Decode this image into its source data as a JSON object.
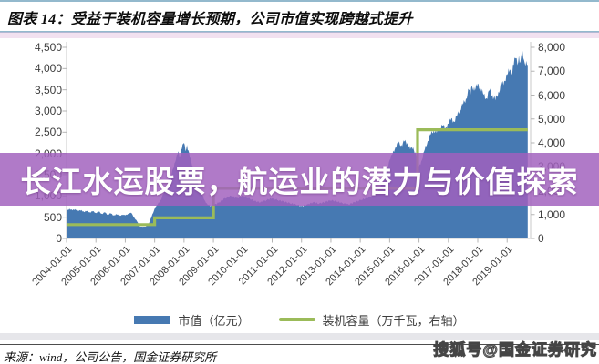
{
  "header": {
    "title": "图表 14：受益于装机容量增长预期，公司市值实现跨越式提升"
  },
  "watermark": {
    "band_text": "长江水运股票，航运业的潜力与价值探索",
    "band_color": "#A160BE",
    "corner_text": "搜狐号@国金证券研究"
  },
  "footer": {
    "source": "来源：wind，公司公告，国金证券研究所"
  },
  "legend": [
    {
      "label": "市值（亿元）",
      "color": "#4679B2",
      "swatch": "bar"
    },
    {
      "label": "装机容量（万千瓦，右轴）",
      "color": "#9BBB59",
      "swatch": "line"
    }
  ],
  "chart_data": {
    "type": "combo",
    "title": "受益于装机容量增长预期，公司市值实现跨越式提升",
    "grid": false,
    "legend_position": "bottom",
    "x_axis": {
      "labels": [
        "2004-01-01",
        "2005-01-01",
        "2006-01-01",
        "2007-01-01",
        "2008-01-01",
        "2009-01-01",
        "2010-01-01",
        "2011-01-01",
        "2012-01-01",
        "2013-01-01",
        "2014-01-01",
        "2015-01-01",
        "2016-01-01",
        "2017-01-01",
        "2018-01-01",
        "2019-01-01"
      ],
      "start_year": 2004,
      "end_year_frac": 2019.8
    },
    "left_axis": {
      "title": "市值（亿元）",
      "min": 0,
      "max": 4500,
      "step": 500,
      "tick_labels": [
        "0",
        "500",
        "1,000",
        "1,500",
        "2,000",
        "2,500",
        "3,000",
        "3,500",
        "4,000",
        "4,500"
      ]
    },
    "right_axis": {
      "title": "装机容量（万千瓦）",
      "min": 0,
      "max": 8000,
      "step": 1000,
      "tick_labels": [
        "0",
        "1,000",
        "2,000",
        "3,000",
        "4,000",
        "5,000",
        "6,000",
        "7,000",
        "8,000"
      ]
    },
    "series": [
      {
        "name": "市值（亿元）",
        "type": "area",
        "axis": "left",
        "color": "#4679B2",
        "points": [
          [
            2004.0,
            650
          ],
          [
            2004.1,
            700
          ],
          [
            2004.2,
            660
          ],
          [
            2004.3,
            690
          ],
          [
            2004.4,
            640
          ],
          [
            2004.5,
            670
          ],
          [
            2004.6,
            620
          ],
          [
            2004.7,
            650
          ],
          [
            2004.8,
            610
          ],
          [
            2004.9,
            640
          ],
          [
            2005.0,
            600
          ],
          [
            2005.1,
            630
          ],
          [
            2005.2,
            580
          ],
          [
            2005.3,
            610
          ],
          [
            2005.4,
            560
          ],
          [
            2005.5,
            590
          ],
          [
            2005.6,
            540
          ],
          [
            2005.7,
            570
          ],
          [
            2005.8,
            530
          ],
          [
            2005.9,
            560
          ],
          [
            2006.0,
            540
          ],
          [
            2006.1,
            580
          ],
          [
            2006.2,
            600
          ],
          [
            2006.3,
            500
          ],
          [
            2006.4,
            400
          ],
          [
            2006.5,
            280
          ],
          [
            2006.6,
            250
          ],
          [
            2006.7,
            280
          ],
          [
            2006.8,
            350
          ],
          [
            2006.9,
            520
          ],
          [
            2007.0,
            700
          ],
          [
            2007.1,
            800
          ],
          [
            2007.2,
            900
          ],
          [
            2007.3,
            1050
          ],
          [
            2007.4,
            1200
          ],
          [
            2007.5,
            1450
          ],
          [
            2007.55,
            1350
          ],
          [
            2007.6,
            1600
          ],
          [
            2007.7,
            1800
          ],
          [
            2007.8,
            2050
          ],
          [
            2007.85,
            1900
          ],
          [
            2007.9,
            2100
          ],
          [
            2008.0,
            2250
          ],
          [
            2008.05,
            2050
          ],
          [
            2008.1,
            2200
          ],
          [
            2008.2,
            1900
          ],
          [
            2008.3,
            1700
          ],
          [
            2008.4,
            1500
          ],
          [
            2008.5,
            1250
          ],
          [
            2008.6,
            1050
          ],
          [
            2008.7,
            900
          ],
          [
            2008.8,
            800
          ],
          [
            2008.9,
            760
          ],
          [
            2009.0,
            780
          ],
          [
            2009.2,
            850
          ],
          [
            2009.4,
            950
          ],
          [
            2009.6,
            1000
          ],
          [
            2009.8,
            950
          ],
          [
            2010.0,
            1000
          ],
          [
            2010.2,
            950
          ],
          [
            2010.4,
            880
          ],
          [
            2010.6,
            850
          ],
          [
            2010.8,
            900
          ],
          [
            2011.0,
            950
          ],
          [
            2011.2,
            900
          ],
          [
            2011.4,
            870
          ],
          [
            2011.6,
            830
          ],
          [
            2011.8,
            800
          ],
          [
            2012.0,
            760
          ],
          [
            2012.2,
            800
          ],
          [
            2012.4,
            850
          ],
          [
            2012.6,
            820
          ],
          [
            2012.8,
            860
          ],
          [
            2013.0,
            900
          ],
          [
            2013.2,
            870
          ],
          [
            2013.4,
            830
          ],
          [
            2013.6,
            800
          ],
          [
            2013.8,
            850
          ],
          [
            2014.0,
            900
          ],
          [
            2014.2,
            950
          ],
          [
            2014.4,
            1000
          ],
          [
            2014.6,
            1100
          ],
          [
            2014.8,
            1400
          ],
          [
            2014.9,
            1600
          ],
          [
            2015.0,
            1850
          ],
          [
            2015.1,
            2000
          ],
          [
            2015.2,
            2150
          ],
          [
            2015.3,
            2250
          ],
          [
            2015.4,
            2200
          ],
          [
            2015.5,
            2280
          ],
          [
            2015.6,
            2250
          ],
          [
            2015.7,
            2100
          ],
          [
            2015.8,
            2150
          ],
          [
            2015.9,
            1950
          ],
          [
            2016.0,
            1700
          ],
          [
            2016.1,
            1850
          ],
          [
            2016.2,
            2100
          ],
          [
            2016.3,
            2300
          ],
          [
            2016.4,
            2450
          ],
          [
            2016.5,
            2550
          ],
          [
            2016.6,
            2480
          ],
          [
            2016.7,
            2580
          ],
          [
            2016.8,
            2650
          ],
          [
            2016.9,
            2600
          ],
          [
            2017.0,
            2700
          ],
          [
            2017.1,
            2820
          ],
          [
            2017.2,
            2750
          ],
          [
            2017.3,
            2900
          ],
          [
            2017.4,
            3050
          ],
          [
            2017.5,
            3150
          ],
          [
            2017.6,
            3300
          ],
          [
            2017.7,
            3500
          ],
          [
            2017.75,
            3380
          ],
          [
            2017.8,
            3600
          ],
          [
            2017.9,
            3480
          ],
          [
            2018.0,
            3650
          ],
          [
            2018.1,
            3520
          ],
          [
            2018.2,
            3380
          ],
          [
            2018.3,
            3300
          ],
          [
            2018.4,
            3480
          ],
          [
            2018.5,
            3380
          ],
          [
            2018.6,
            3250
          ],
          [
            2018.7,
            3450
          ],
          [
            2018.8,
            3600
          ],
          [
            2018.9,
            3700
          ],
          [
            2019.0,
            3850
          ],
          [
            2019.1,
            3980
          ],
          [
            2019.15,
            3850
          ],
          [
            2019.2,
            4100
          ],
          [
            2019.3,
            4250
          ],
          [
            2019.35,
            4080
          ],
          [
            2019.4,
            4300
          ],
          [
            2019.45,
            4150
          ],
          [
            2019.5,
            4380
          ],
          [
            2019.55,
            4250
          ],
          [
            2019.6,
            4120
          ],
          [
            2019.65,
            4180
          ],
          [
            2019.7,
            4080
          ]
        ]
      },
      {
        "name": "装机容量（万千瓦，右轴）",
        "type": "step_line",
        "axis": "right",
        "color": "#9BBB59",
        "steps": [
          {
            "from": 2004.0,
            "to": 2007.0,
            "value": 580
          },
          {
            "from": 2007.0,
            "to": 2009.0,
            "value": 860
          },
          {
            "from": 2009.0,
            "to": 2015.95,
            "value": 2100
          },
          {
            "from": 2015.95,
            "to": 2019.7,
            "value": 4550
          }
        ]
      }
    ]
  }
}
